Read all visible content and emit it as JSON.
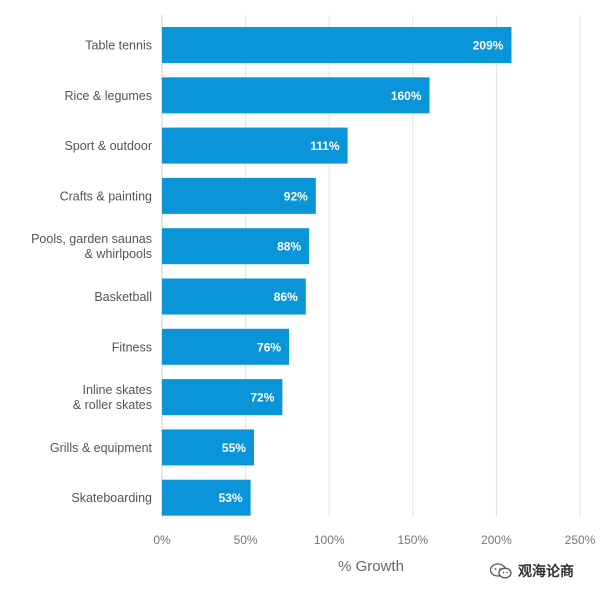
{
  "chart_data": {
    "type": "bar",
    "orientation": "horizontal",
    "categories": [
      [
        "Table tennis"
      ],
      [
        "Rice & legumes"
      ],
      [
        "Sport & outdoor"
      ],
      [
        "Crafts & painting"
      ],
      [
        "Pools, garden saunas",
        "& whirlpools"
      ],
      [
        "Basketball"
      ],
      [
        "Fitness"
      ],
      [
        "Inline skates",
        "& roller skates"
      ],
      [
        "Grills & equipment"
      ],
      [
        "Skateboarding"
      ]
    ],
    "values": [
      209,
      160,
      111,
      92,
      88,
      86,
      76,
      72,
      55,
      53
    ],
    "value_labels": [
      "209%",
      "160%",
      "111%",
      "92%",
      "88%",
      "86%",
      "76%",
      "72%",
      "55%",
      "53%"
    ],
    "xlabel": "% Growth",
    "xlim": [
      0,
      250
    ],
    "xticks": [
      0,
      50,
      100,
      150,
      200,
      250
    ],
    "xtick_labels": [
      "0%",
      "50%",
      "100%",
      "150%",
      "200%",
      "250%"
    ],
    "grid": "vertical",
    "bar_color": "#0a95d9"
  },
  "watermark": {
    "icon": "wechat-icon",
    "text": "观海论商"
  }
}
